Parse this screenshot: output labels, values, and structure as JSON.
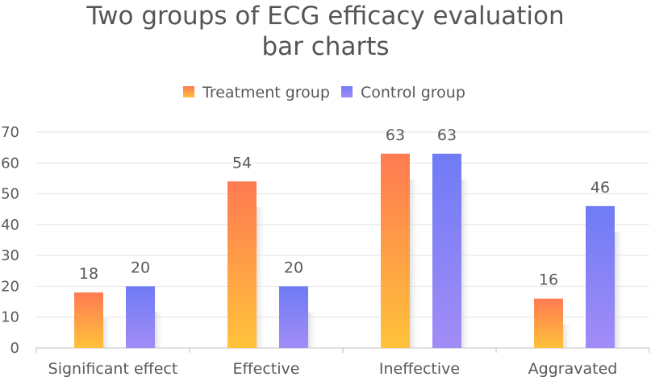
{
  "chart_data": {
    "type": "bar",
    "title_lines": [
      "Two groups of ECG efficacy evaluation",
      "bar charts"
    ],
    "categories": [
      "Significant effect",
      "Effective",
      "Ineffective",
      "Aggravated"
    ],
    "series": [
      {
        "name": "Treatment group",
        "values": [
          18,
          54,
          63,
          16
        ],
        "color_top": "#ff7a52",
        "color_bottom": "#ffc23a"
      },
      {
        "name": "Control group",
        "values": [
          20,
          20,
          63,
          46
        ],
        "color_top": "#6f7bf5",
        "color_bottom": "#a28cf7"
      }
    ],
    "ylim": [
      0,
      70
    ],
    "yticks": [
      0,
      10,
      20,
      30,
      40,
      50,
      60,
      70
    ],
    "grid": true,
    "legend_position": "top-center",
    "xlabel": "",
    "ylabel": ""
  }
}
